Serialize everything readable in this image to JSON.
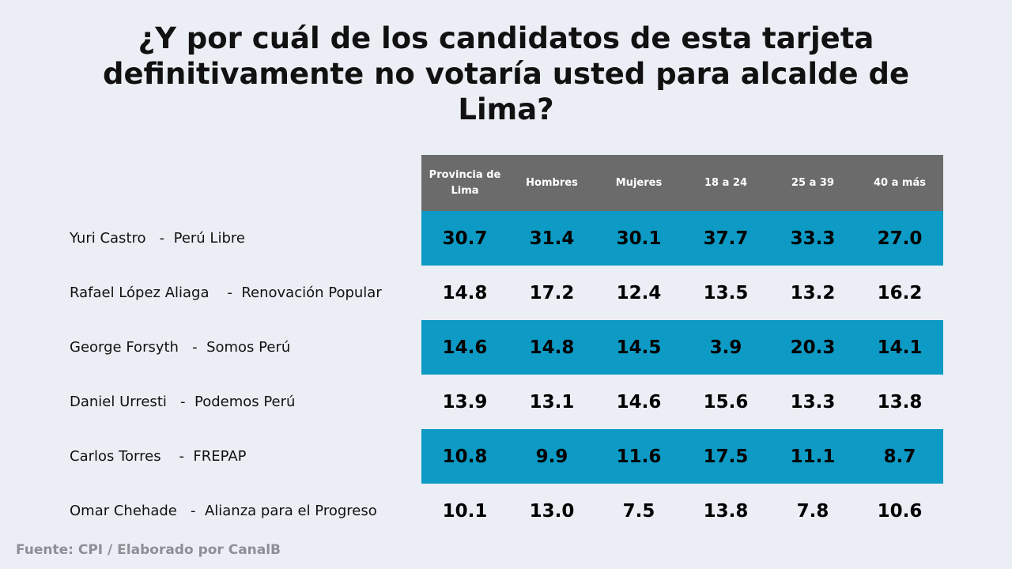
{
  "chart_data": {
    "type": "table",
    "title": "¿Y por cuál de los candidatos de esta tarjeta definitivamente no votaría usted para alcalde de Lima?",
    "columns": [
      "Provincia de Lima",
      "Hombres",
      "Mujeres",
      "18 a 24",
      "25 a 39",
      "40 a más"
    ],
    "rows": [
      {
        "label": "Yuri Castro   -  Perú Libre",
        "values": [
          "30.7",
          "31.4",
          "30.1",
          "37.7",
          "33.3",
          "27.0"
        ]
      },
      {
        "label": "Rafael López Aliaga    -  Renovación Popular",
        "values": [
          "14.8",
          "17.2",
          "12.4",
          "13.5",
          "13.2",
          "16.2"
        ]
      },
      {
        "label": "George Forsyth   -  Somos Perú",
        "values": [
          "14.6",
          "14.8",
          "14.5",
          "3.9",
          "20.3",
          "14.1"
        ]
      },
      {
        "label": "Daniel Urresti   -  Podemos Perú",
        "values": [
          "13.9",
          "13.1",
          "14.6",
          "15.6",
          "13.3",
          "13.8"
        ]
      },
      {
        "label": "Carlos Torres    -  FREPAP",
        "values": [
          "10.8",
          "9.9",
          "11.6",
          "17.5",
          "11.1",
          "8.7"
        ]
      },
      {
        "label": "Omar Chehade   -  Alianza para el Progreso",
        "values": [
          "10.1",
          "13.0",
          "7.5",
          "13.8",
          "7.8",
          "10.6"
        ]
      }
    ],
    "source": "Fuente: CPI / Elaborado por CanalB"
  },
  "colors": {
    "background": "#ebeef4",
    "header": "#6b6b6b",
    "highlight_row": "#0d9ac4",
    "source_text": "#8c8f95"
  }
}
